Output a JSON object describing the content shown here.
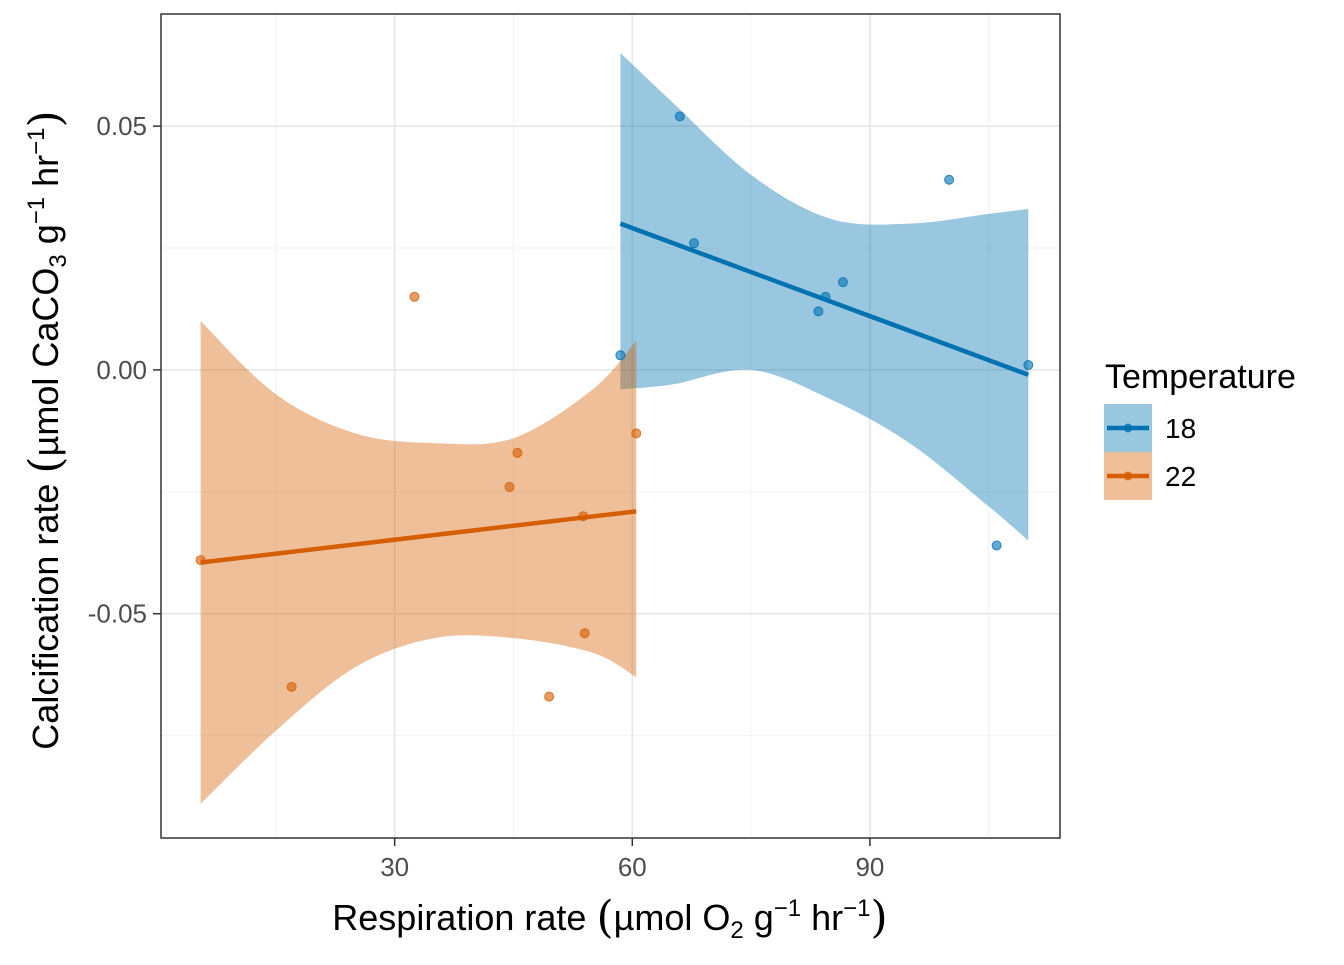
{
  "chart_data": {
    "type": "scatter",
    "title": "",
    "xlabel": {
      "prefix": "Respiration rate",
      "unit": "µmol O",
      "sub": "2",
      "mid": " g",
      "sup1": "−1",
      "mid2": " hr",
      "sup2": "−1"
    },
    "ylabel": {
      "prefix": "Calcification rate",
      "unit": "µmol CaCO",
      "sub": "3",
      "mid": " g",
      "sup1": "−1",
      "mid2": " hr",
      "sup2": "−1"
    },
    "xlim": [
      0.5,
      114
    ],
    "ylim": [
      -0.096,
      0.073
    ],
    "x_ticks": [
      30,
      60,
      90
    ],
    "y_ticks": [
      0.05,
      0.0,
      -0.05
    ],
    "x_tick_labels": [
      "30",
      "60",
      "90"
    ],
    "y_tick_labels": [
      "0.05",
      "0.00",
      "-0.05"
    ],
    "grid": true,
    "legend": {
      "title": "Temperature",
      "position": "right"
    },
    "series": [
      {
        "name": "18",
        "color": "#0072B2",
        "points": [
          {
            "x": 58.5,
            "y": 0.003
          },
          {
            "x": 66.0,
            "y": 0.052
          },
          {
            "x": 67.8,
            "y": 0.026
          },
          {
            "x": 83.5,
            "y": 0.012
          },
          {
            "x": 84.4,
            "y": 0.015
          },
          {
            "x": 86.6,
            "y": 0.018
          },
          {
            "x": 100.0,
            "y": 0.039
          },
          {
            "x": 106.0,
            "y": -0.036
          },
          {
            "x": 110.0,
            "y": 0.001
          }
        ],
        "fit": {
          "x": [
            58.5,
            110.0
          ],
          "y": [
            0.03,
            -0.001
          ]
        },
        "ribbon": {
          "x": [
            58.5,
            65,
            75,
            85,
            95,
            105,
            110
          ],
          "upper": [
            0.065,
            0.055,
            0.04,
            0.031,
            0.03,
            0.032,
            0.033
          ],
          "lower": [
            -0.004,
            -0.003,
            0.0,
            -0.006,
            -0.015,
            -0.028,
            -0.035
          ]
        }
      },
      {
        "name": "22",
        "color": "#D55E00",
        "points": [
          {
            "x": 5.5,
            "y": -0.039
          },
          {
            "x": 17.0,
            "y": -0.065
          },
          {
            "x": 32.5,
            "y": 0.015
          },
          {
            "x": 44.5,
            "y": -0.024
          },
          {
            "x": 45.5,
            "y": -0.017
          },
          {
            "x": 49.5,
            "y": -0.067
          },
          {
            "x": 53.8,
            "y": -0.03
          },
          {
            "x": 54.0,
            "y": -0.054
          },
          {
            "x": 60.5,
            "y": -0.013
          }
        ],
        "fit": {
          "x": [
            5.5,
            60.5
          ],
          "y": [
            -0.0395,
            -0.029
          ]
        },
        "ribbon": {
          "x": [
            5.5,
            15,
            25,
            35,
            45,
            55,
            60.5
          ],
          "upper": [
            0.01,
            -0.005,
            -0.013,
            -0.015,
            -0.014,
            -0.004,
            0.006
          ],
          "lower": [
            -0.089,
            -0.074,
            -0.061,
            -0.055,
            -0.055,
            -0.058,
            -0.063
          ]
        }
      }
    ]
  }
}
